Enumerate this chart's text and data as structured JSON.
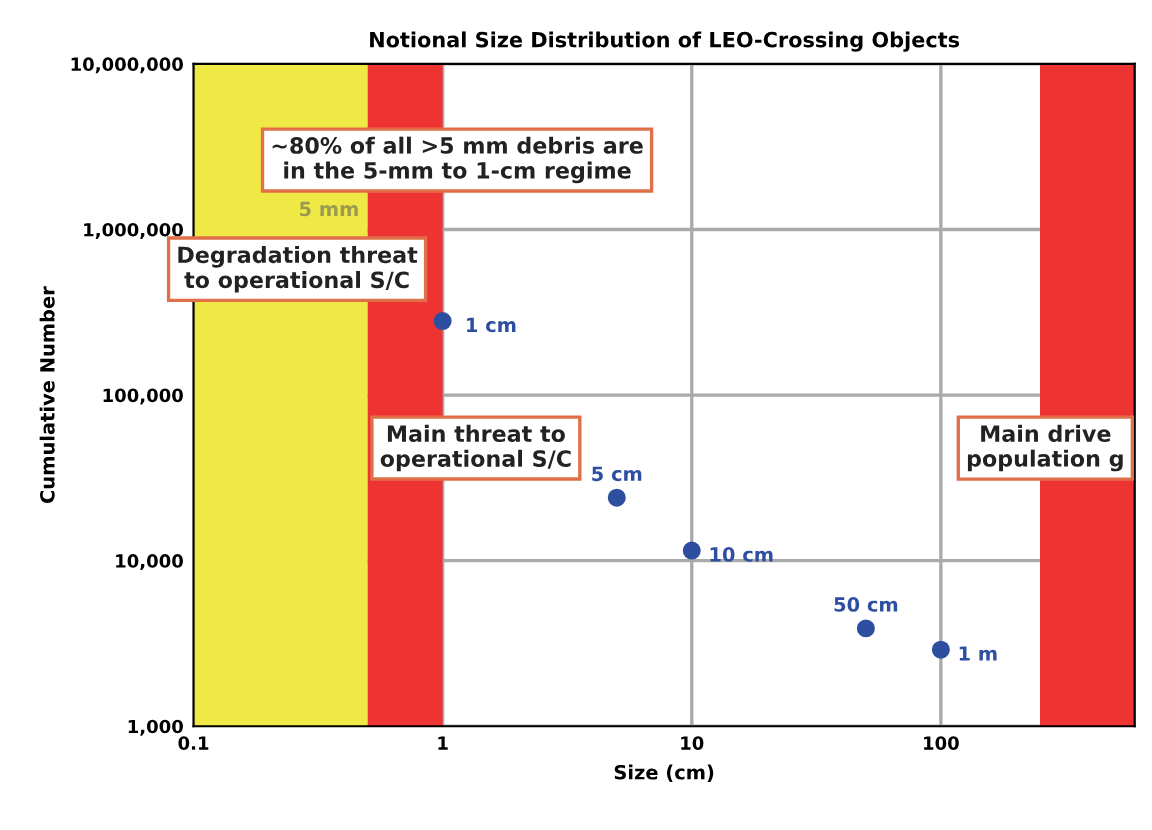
{
  "chart_data": {
    "type": "scatter",
    "title": "Notional Size Distribution of LEO-Crossing Objects",
    "xlabel": "Size (cm)",
    "ylabel": "Cumulative Number",
    "x": [
      1,
      5,
      10,
      50,
      100
    ],
    "series": [
      {
        "color": "#2e4fa0",
        "values": [
          280000,
          24000,
          11500,
          3900,
          2900
        ]
      }
    ],
    "log": "xy",
    "xlim": [
      0.1,
      600
    ],
    "ylim": [
      1000,
      10000000
    ],
    "xticks": [
      0.1,
      1,
      10,
      100
    ],
    "yticks": [
      {
        "value": 1000,
        "label": "1,000"
      },
      {
        "value": 10000,
        "label": "10,000"
      },
      {
        "value": 100000,
        "label": "100,000"
      },
      {
        "value": 1000000,
        "label": "1,000,000"
      },
      {
        "value": 10000000,
        "label": "10,000,000"
      }
    ],
    "grid": true,
    "marker": "circle",
    "legend": false,
    "bands": [
      {
        "axis": "x",
        "from": 0.1,
        "to": 0.5,
        "color": "#f0e844"
      },
      {
        "axis": "x",
        "from": 0.5,
        "to": 1,
        "color": "#ee3333"
      },
      {
        "axis": "x",
        "from": 250,
        "to": 600,
        "color": "#ee3333"
      }
    ],
    "annotations": [
      {
        "text": "1 cm",
        "x": 1,
        "y": 280000
      },
      {
        "text": "5 cm",
        "x": 5,
        "y": 24000
      },
      {
        "text": "10 cm",
        "x": 10,
        "y": 11500
      },
      {
        "text": "50 cm",
        "x": 50,
        "y": 3900
      },
      {
        "text": "1 m",
        "x": 100,
        "y": 2900
      },
      {
        "text": "5 mm",
        "x": 0.5,
        "y": 1300000
      },
      "~80% of all >5 mm debris are\nin the 5-mm to 1-cm regime",
      "Degradation threat\nto operational S/C",
      "Main threat to\noperational S/C",
      "Main drive\npopulation g"
    ]
  }
}
